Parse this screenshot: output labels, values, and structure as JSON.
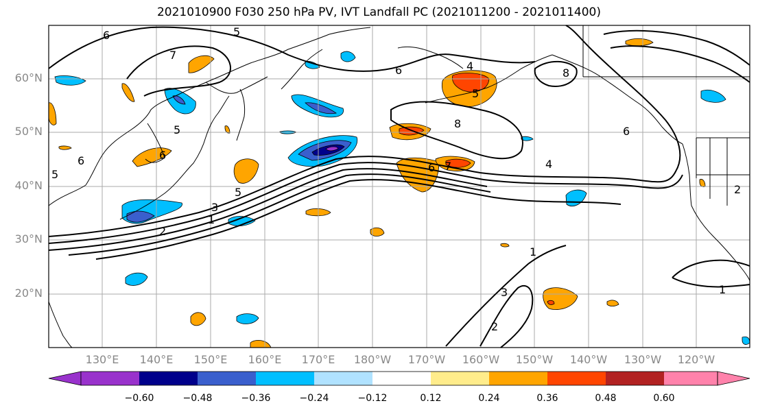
{
  "title": "2021010900 F030 250 hPa PV, IVT Landfall PC (2021011200 - 2021011400)",
  "lat_labels": [
    "60°N",
    "50°N",
    "40°N",
    "30°N",
    "20°N"
  ],
  "lon_labels": [
    "130°E",
    "140°E",
    "150°E",
    "160°E",
    "170°E",
    "180°W",
    "170°W",
    "160°W",
    "150°W",
    "140°W",
    "130°W",
    "120°W"
  ],
  "colorbar": {
    "ticks": [
      "−0.60",
      "−0.48",
      "−0.36",
      "−0.24",
      "−0.12",
      "0.12",
      "0.24",
      "0.36",
      "0.48",
      "0.60"
    ],
    "colors": [
      "#9932CC",
      "#00008B",
      "#3A5FCD",
      "#00BFFF",
      "#B0E2FF",
      "#FFFFFF",
      "#FFEC8B",
      "#FFA500",
      "#FF4500",
      "#B22222",
      "#FF82AB"
    ]
  },
  "contour_labels": [
    "6",
    "5",
    "7",
    "6",
    "4",
    "5",
    "8",
    "8",
    "6",
    "6",
    "7",
    "6",
    "4",
    "5",
    "3",
    "1",
    "2",
    "5",
    "6",
    "1",
    "2",
    "3",
    "1",
    "2",
    "5"
  ]
}
